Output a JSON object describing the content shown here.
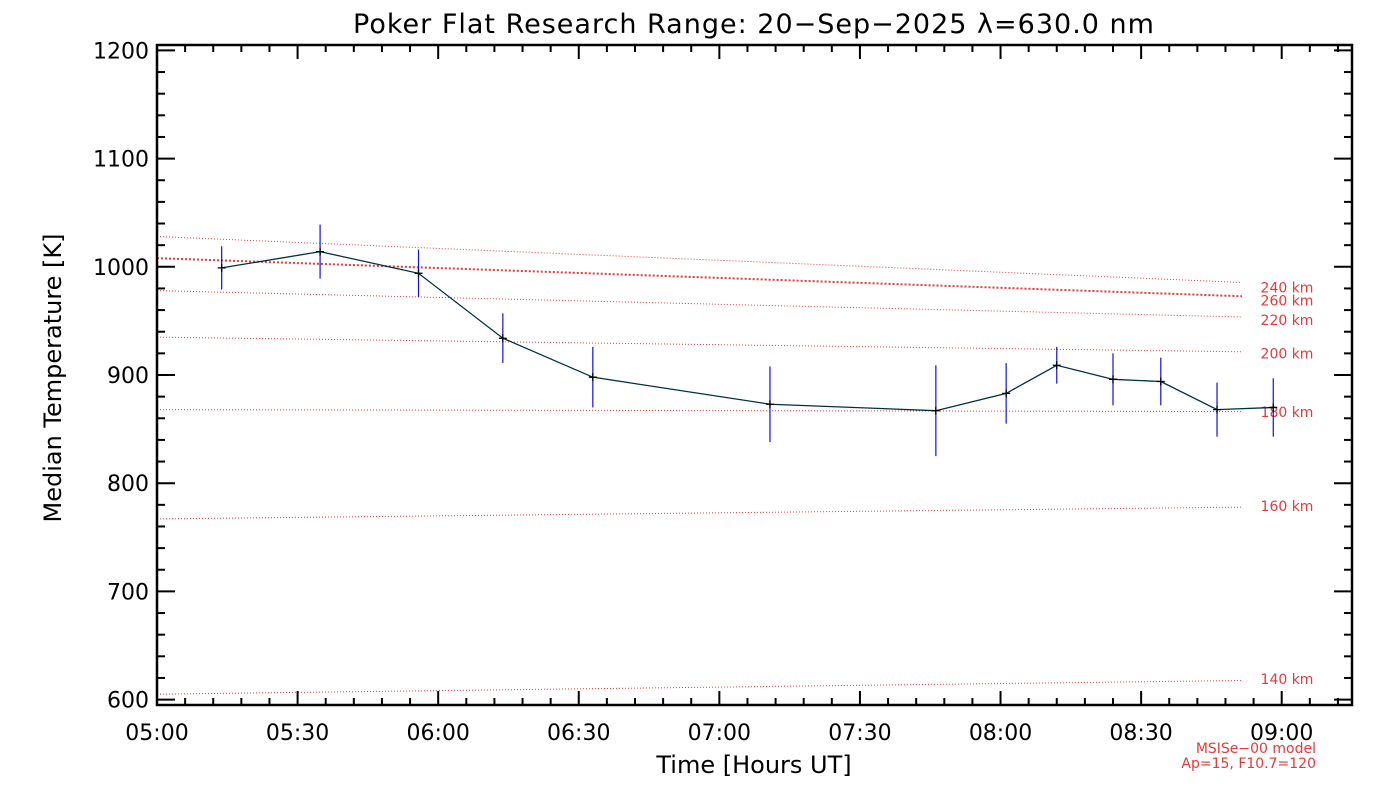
{
  "chart_data": {
    "type": "line",
    "title": "Poker Flat Research Range: 20−Sep−2025 λ=630.0 nm",
    "xlabel": "Time [Hours UT]",
    "ylabel": "Median Temperature [K]",
    "xlim": [
      5.0,
      9.25
    ],
    "ylim": [
      595,
      1205
    ],
    "x_ticks": [
      {
        "value": 5.0,
        "label": "05:00"
      },
      {
        "value": 5.5,
        "label": "05:30"
      },
      {
        "value": 6.0,
        "label": "06:00"
      },
      {
        "value": 6.5,
        "label": "06:30"
      },
      {
        "value": 7.0,
        "label": "07:00"
      },
      {
        "value": 7.5,
        "label": "07:30"
      },
      {
        "value": 8.0,
        "label": "08:00"
      },
      {
        "value": 8.5,
        "label": "08:30"
      },
      {
        "value": 9.0,
        "label": "09:00"
      }
    ],
    "y_ticks": [
      {
        "value": 600,
        "label": "600"
      },
      {
        "value": 700,
        "label": "700"
      },
      {
        "value": 800,
        "label": "800"
      },
      {
        "value": 900,
        "label": "900"
      },
      {
        "value": 1000,
        "label": "1000"
      },
      {
        "value": 1100,
        "label": "1100"
      },
      {
        "value": 1200,
        "label": "1200"
      }
    ],
    "measured": {
      "name": "Median Temperature",
      "color": "#003040",
      "error_color": "#1010e0",
      "x": [
        5.23,
        5.58,
        5.93,
        6.23,
        6.55,
        7.18,
        7.77,
        8.02,
        8.2,
        8.4,
        8.57,
        8.77,
        8.97
      ],
      "y": [
        999,
        1014,
        994,
        934,
        898,
        873,
        867,
        883,
        909,
        896,
        894,
        868,
        870
      ],
      "err": [
        20,
        25,
        22,
        23,
        28,
        35,
        42,
        28,
        17,
        24,
        22,
        25,
        27
      ]
    },
    "model_series": [
      {
        "name": "140 km",
        "x": [
          5.0,
          9.25
        ],
        "y": [
          605,
          619
        ]
      },
      {
        "name": "160 km",
        "x": [
          5.0,
          9.25
        ],
        "y": [
          767,
          779
        ]
      },
      {
        "name": "180 km",
        "x": [
          5.0,
          9.25
        ],
        "y": [
          868,
          866
        ]
      },
      {
        "name": "200 km",
        "x": [
          5.0,
          9.25
        ],
        "y": [
          935,
          920
        ]
      },
      {
        "name": "220 km",
        "x": [
          5.0,
          9.25
        ],
        "y": [
          978,
          951
        ]
      },
      {
        "name": "240 km",
        "x": [
          5.0,
          9.25
        ],
        "y": [
          1028,
          981
        ]
      },
      {
        "name": "260 km",
        "x": [
          5.0,
          9.25
        ],
        "y": [
          1008,
          969
        ],
        "emphasis": true
      }
    ],
    "model_label_lines": [
      "MSISe−00 model",
      "Ap=15, F10.7=120"
    ],
    "model_color": "#e23a3a",
    "grid": false
  }
}
